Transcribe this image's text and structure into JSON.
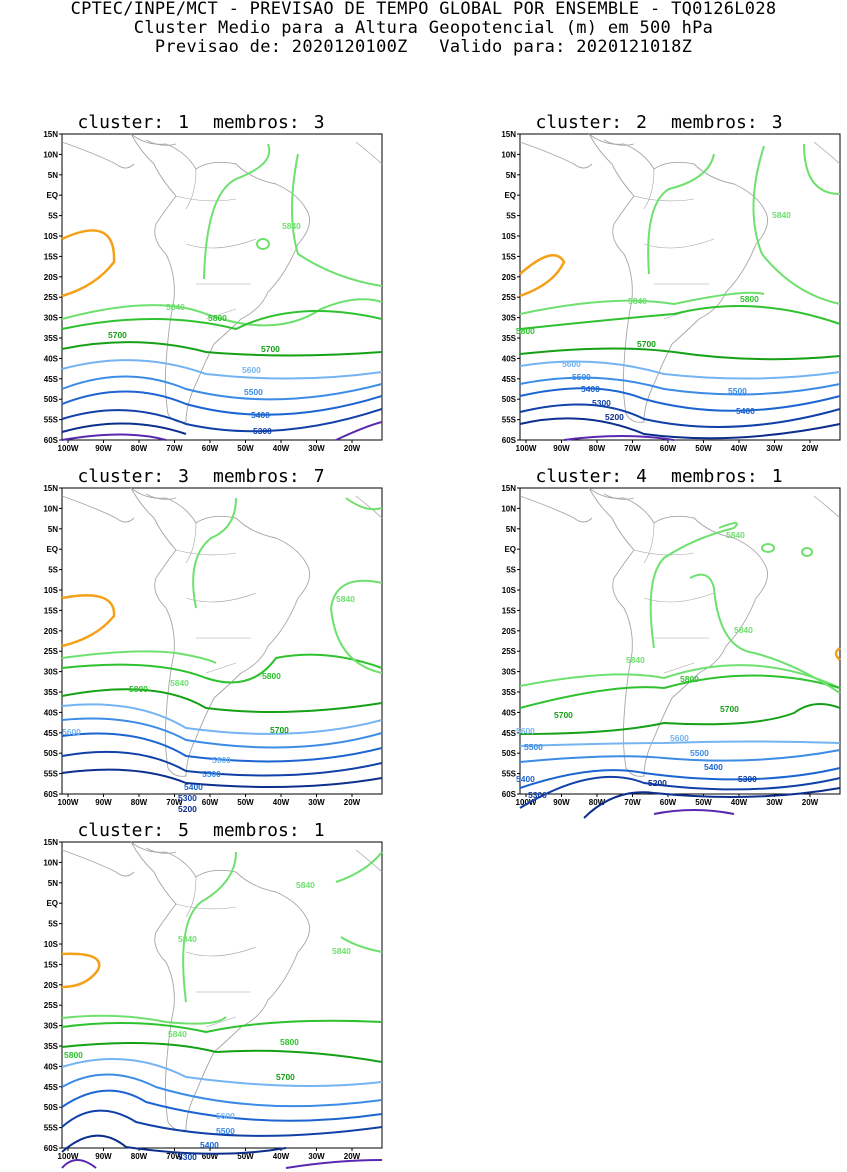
{
  "header": {
    "line1": "CPTEC/INPE/MCT - PREVISAO DE TEMPO GLOBAL POR ENSEMBLE - TQ0126L028",
    "line2": "Cluster Medio para a Altura Geopotencial (m) em 500 hPa",
    "line3": "Previsao de: 2020120100Z   Valido para: 2020121018Z"
  },
  "axes": {
    "lat_labels": [
      "15N",
      "10N",
      "5N",
      "EQ",
      "5S",
      "10S",
      "15S",
      "20S",
      "25S",
      "30S",
      "35S",
      "40S",
      "45S",
      "50S",
      "55S",
      "60S"
    ],
    "lon_labels": [
      "100W",
      "90W",
      "80W",
      "70W",
      "60W",
      "50W",
      "40W",
      "30W",
      "20W"
    ]
  },
  "colors": {
    "c5840": "#6ee06e",
    "c5800": "#2ec22e",
    "c5700": "#16a016",
    "c5600": "#74b4f2",
    "c5500": "#3c8ce6",
    "c5400": "#1c64d2",
    "c5300": "#1040a8",
    "c5200": "#0c2e8c",
    "cmin": "#5a28b0",
    "chigh": "#f4a018",
    "coast": "#a6a6a6"
  },
  "clusters": [
    {
      "cluster_label": "cluster:",
      "cluster_num": "1",
      "members_label": "membros:",
      "members_num": "3",
      "contour_labels": [
        "5840",
        "5840",
        "5800",
        "5700",
        "5700",
        "5600",
        "5500",
        "5400",
        "5300"
      ]
    },
    {
      "cluster_label": "cluster:",
      "cluster_num": "2",
      "members_label": "membros:",
      "members_num": "3",
      "contour_labels": [
        "5840",
        "5840",
        "5800",
        "5800",
        "5700",
        "5600",
        "5500",
        "5500",
        "5400",
        "5400",
        "5300",
        "5200"
      ]
    },
    {
      "cluster_label": "cluster:",
      "cluster_num": "3",
      "members_label": "membros:",
      "members_num": "7",
      "contour_labels": [
        "5840",
        "5840",
        "5800",
        "5800",
        "5700",
        "5600",
        "5600",
        "5500",
        "5400",
        "5300",
        "5200"
      ]
    },
    {
      "cluster_label": "cluster:",
      "cluster_num": "4",
      "members_label": "membros:",
      "members_num": "1",
      "contour_labels": [
        "5840",
        "5840",
        "5840",
        "5800",
        "5700",
        "5700",
        "5600",
        "5600",
        "5500",
        "5500",
        "5400",
        "5400",
        "5300",
        "5300",
        "5200"
      ]
    },
    {
      "cluster_label": "cluster:",
      "cluster_num": "5",
      "members_label": "membros:",
      "members_num": "1",
      "contour_labels": [
        "5840",
        "5840",
        "5840",
        "5840",
        "5800",
        "5800",
        "5700",
        "5600",
        "5500",
        "5400",
        "5300"
      ]
    }
  ]
}
